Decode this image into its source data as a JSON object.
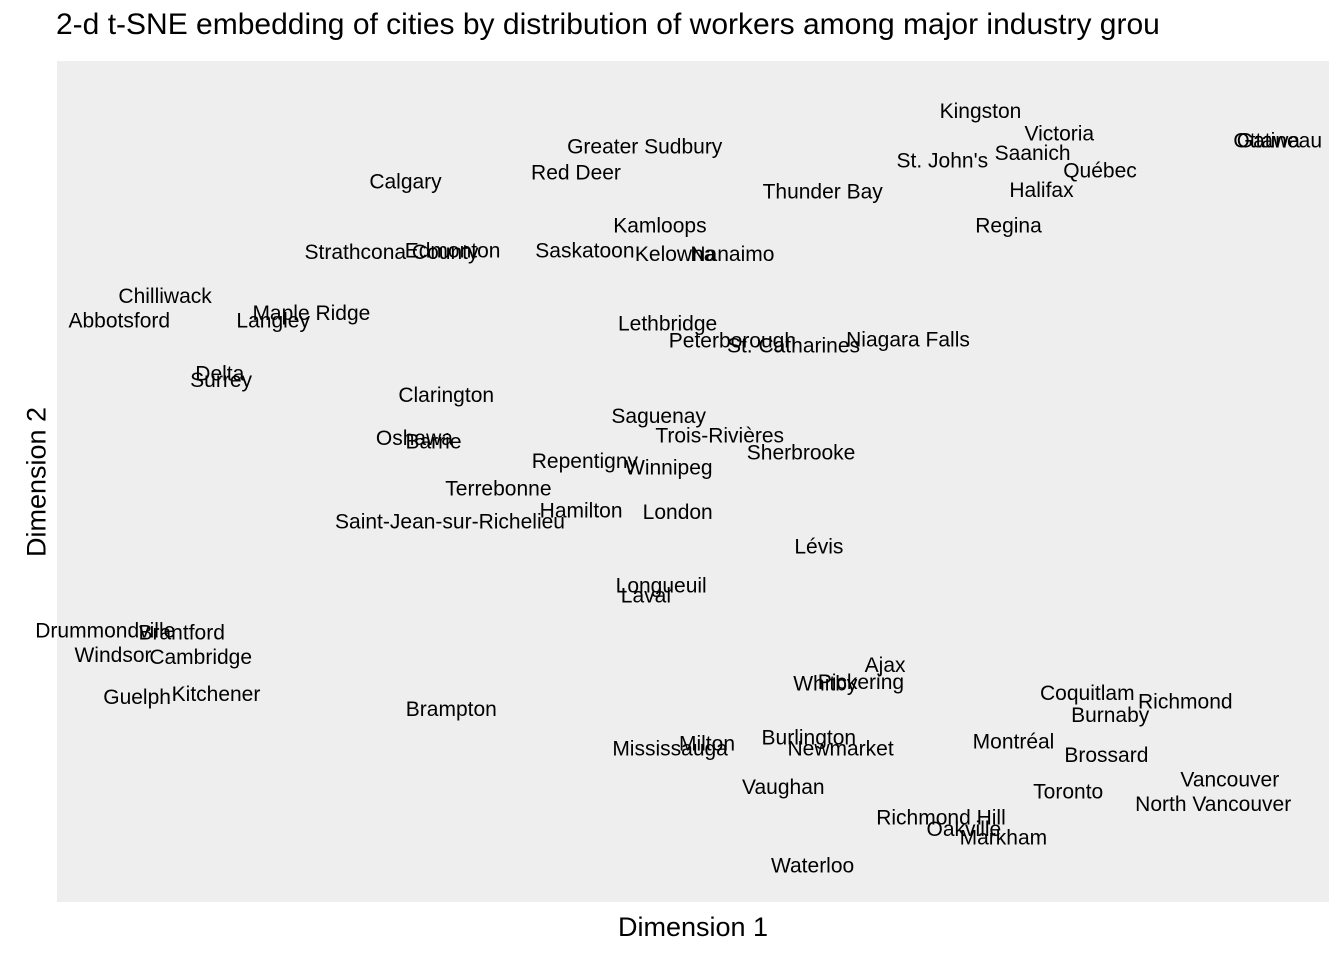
{
  "chart_data": {
    "type": "scatter",
    "title": "2-d t-SNE embedding of cities by distribution of workers among major industry grou",
    "xlabel": "Dimension 1",
    "ylabel": "Dimension 2",
    "xlim": [
      0,
      100
    ],
    "ylim": [
      0,
      100
    ],
    "grid": false,
    "panel_color": "#eeeeee",
    "label_color": "#000000",
    "axes_ticks": false,
    "points": [
      {
        "label": "Kingston",
        "x": 72.6,
        "y": 94.0
      },
      {
        "label": "Victoria",
        "x": 78.8,
        "y": 91.3
      },
      {
        "label": "Gatineau",
        "x": 96.1,
        "y": 90.5
      },
      {
        "label": "Ottawa",
        "x": 95.1,
        "y": 90.5
      },
      {
        "label": "Saanich",
        "x": 76.7,
        "y": 89.0
      },
      {
        "label": "St. John's",
        "x": 69.6,
        "y": 88.1
      },
      {
        "label": "Greater Sudbury",
        "x": 46.2,
        "y": 89.8
      },
      {
        "label": "Red Deer",
        "x": 40.8,
        "y": 86.7
      },
      {
        "label": "Calgary",
        "x": 27.4,
        "y": 85.6
      },
      {
        "label": "Québec",
        "x": 82.0,
        "y": 86.9
      },
      {
        "label": "Thunder Bay",
        "x": 60.2,
        "y": 84.4
      },
      {
        "label": "Halifax",
        "x": 77.4,
        "y": 84.6
      },
      {
        "label": "Kamloops",
        "x": 47.4,
        "y": 80.4
      },
      {
        "label": "Regina",
        "x": 74.8,
        "y": 80.4
      },
      {
        "label": "Strathcona County",
        "x": 26.3,
        "y": 77.2
      },
      {
        "label": "Edmonton",
        "x": 31.1,
        "y": 77.4
      },
      {
        "label": "Saskatoon",
        "x": 41.5,
        "y": 77.4
      },
      {
        "label": "Kelowna",
        "x": 48.6,
        "y": 77.0
      },
      {
        "label": "Nanaimo",
        "x": 53.1,
        "y": 77.0
      },
      {
        "label": "Chilliwack",
        "x": 8.5,
        "y": 72.0
      },
      {
        "label": "Abbotsford",
        "x": 4.9,
        "y": 69.1
      },
      {
        "label": "Langley",
        "x": 17.0,
        "y": 69.1
      },
      {
        "label": "Maple Ridge",
        "x": 20.0,
        "y": 70.0
      },
      {
        "label": "Lethbridge",
        "x": 48.0,
        "y": 68.7
      },
      {
        "label": "Peterborough",
        "x": 53.1,
        "y": 66.7
      },
      {
        "label": "St. Catharines",
        "x": 57.9,
        "y": 66.1
      },
      {
        "label": "Niagara Falls",
        "x": 66.9,
        "y": 66.8
      },
      {
        "label": "Delta",
        "x": 12.8,
        "y": 62.8
      },
      {
        "label": "Surrey",
        "x": 12.9,
        "y": 62.0
      },
      {
        "label": "Clarington",
        "x": 30.6,
        "y": 60.2
      },
      {
        "label": "Saguenay",
        "x": 47.3,
        "y": 57.7
      },
      {
        "label": "Trois-Rivières",
        "x": 52.1,
        "y": 55.4
      },
      {
        "label": "Oshawa",
        "x": 28.1,
        "y": 55.1
      },
      {
        "label": "Barrie",
        "x": 29.6,
        "y": 54.7
      },
      {
        "label": "Sherbrooke",
        "x": 58.5,
        "y": 53.4
      },
      {
        "label": "Repentigny",
        "x": 41.5,
        "y": 52.4
      },
      {
        "label": "Winnipeg",
        "x": 48.1,
        "y": 51.6
      },
      {
        "label": "Terrebonne",
        "x": 34.7,
        "y": 49.1
      },
      {
        "label": "Hamilton",
        "x": 41.2,
        "y": 46.5
      },
      {
        "label": "London",
        "x": 48.8,
        "y": 46.3
      },
      {
        "label": "Saint-Jean-sur-Richelieu",
        "x": 30.9,
        "y": 45.2
      },
      {
        "label": "Lévis",
        "x": 59.9,
        "y": 42.2
      },
      {
        "label": "Longueuil",
        "x": 47.5,
        "y": 37.6
      },
      {
        "label": "Laval",
        "x": 46.3,
        "y": 36.4
      },
      {
        "label": "Drummondville",
        "x": 3.8,
        "y": 32.2
      },
      {
        "label": "Brantford",
        "x": 9.8,
        "y": 32.0
      },
      {
        "label": "Windsor",
        "x": 4.4,
        "y": 29.3
      },
      {
        "label": "Cambridge",
        "x": 11.3,
        "y": 29.1
      },
      {
        "label": "Ajax",
        "x": 65.1,
        "y": 28.1
      },
      {
        "label": "Whitby",
        "x": 60.4,
        "y": 25.9
      },
      {
        "label": "Pickering",
        "x": 63.2,
        "y": 26.1
      },
      {
        "label": "Guelph",
        "x": 6.3,
        "y": 24.3
      },
      {
        "label": "Kitchener",
        "x": 12.5,
        "y": 24.7
      },
      {
        "label": "Coquitlam",
        "x": 81.0,
        "y": 24.8
      },
      {
        "label": "Richmond",
        "x": 88.7,
        "y": 23.8
      },
      {
        "label": "Burnaby",
        "x": 82.8,
        "y": 22.2
      },
      {
        "label": "Brampton",
        "x": 31.0,
        "y": 22.9
      },
      {
        "label": "Burlington",
        "x": 59.1,
        "y": 19.5
      },
      {
        "label": "Montréal",
        "x": 75.2,
        "y": 19.0
      },
      {
        "label": "Milton",
        "x": 51.1,
        "y": 18.8
      },
      {
        "label": "Mississauga",
        "x": 48.2,
        "y": 18.2
      },
      {
        "label": "Newmarket",
        "x": 61.6,
        "y": 18.2
      },
      {
        "label": "Brossard",
        "x": 82.5,
        "y": 17.4
      },
      {
        "label": "Vancouver",
        "x": 92.2,
        "y": 14.5
      },
      {
        "label": "Vaughan",
        "x": 57.1,
        "y": 13.6
      },
      {
        "label": "Toronto",
        "x": 79.5,
        "y": 13.1
      },
      {
        "label": "North Vancouver",
        "x": 90.9,
        "y": 11.6
      },
      {
        "label": "Richmond Hill",
        "x": 69.5,
        "y": 10.0
      },
      {
        "label": "Oakville",
        "x": 71.3,
        "y": 8.6
      },
      {
        "label": "Markham",
        "x": 74.4,
        "y": 7.6
      },
      {
        "label": "Waterloo",
        "x": 59.4,
        "y": 4.3
      }
    ]
  }
}
